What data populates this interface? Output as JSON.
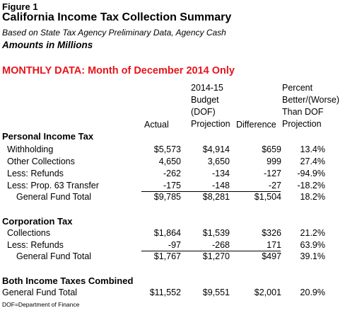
{
  "figure_label": "Figure 1",
  "title": "California Income Tax Collection Summary",
  "subtitle": "Based on State Tax Agency Preliminary Data, Agency Cash",
  "units": "Amounts in Millions",
  "monthly_heading": "MONTHLY DATA: Month of December 2014 Only",
  "colors": {
    "heading_red": "#e8141b"
  },
  "columns": {
    "actual": "Actual",
    "budget_line1": "2014-15",
    "budget_line2": "Budget",
    "budget_line3": "(DOF)",
    "budget_line4": "Projection",
    "difference": "Difference",
    "pct_line1": "Percent",
    "pct_line2": "Better/(Worse)",
    "pct_line3": "Than DOF",
    "pct_line4": "Projection"
  },
  "personal_income_tax": {
    "heading": "Personal Income Tax",
    "rows": [
      {
        "label": "Withholding",
        "actual": "$5,573",
        "budget": "$4,914",
        "difference": "$659",
        "percent": "13.4%"
      },
      {
        "label": "Other Collections",
        "actual": "4,650",
        "budget": "3,650",
        "difference": "999",
        "percent": "27.4%"
      },
      {
        "label": "Less: Refunds",
        "actual": "-262",
        "budget": "-134",
        "difference": "-127",
        "percent": "-94.9%"
      },
      {
        "label": "Less: Prop. 63 Transfer",
        "actual": "-175",
        "budget": "-148",
        "difference": "-27",
        "percent": "-18.2%"
      }
    ],
    "total": {
      "label": "General Fund Total",
      "actual": "$9,785",
      "budget": "$8,281",
      "difference": "$1,504",
      "percent": "18.2%"
    }
  },
  "corporation_tax": {
    "heading": "Corporation Tax",
    "rows": [
      {
        "label": "Collections",
        "actual": "$1,864",
        "budget": "$1,539",
        "difference": "$326",
        "percent": "21.2%"
      },
      {
        "label": "Less: Refunds",
        "actual": "-97",
        "budget": "-268",
        "difference": "171",
        "percent": "63.9%"
      }
    ],
    "total": {
      "label": "General Fund Total",
      "actual": "$1,767",
      "budget": "$1,270",
      "difference": "$497",
      "percent": "39.1%"
    }
  },
  "combined": {
    "heading": "Both Income Taxes Combined",
    "total": {
      "label": "General Fund Total",
      "actual": "$11,552",
      "budget": "$9,551",
      "difference": "$2,001",
      "percent": "20.9%"
    }
  },
  "footnote": "DOF=Department of Finance"
}
